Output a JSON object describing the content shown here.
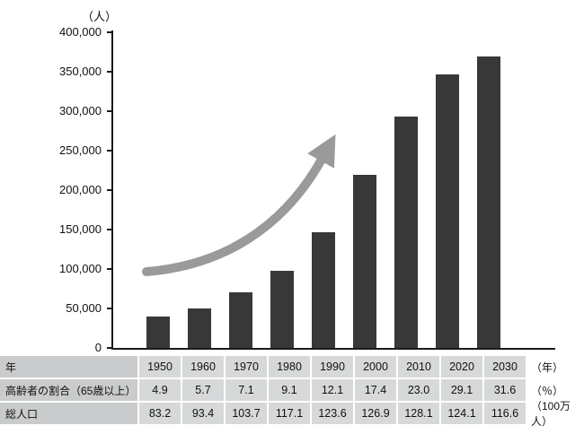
{
  "chart_data": {
    "type": "bar",
    "title": "",
    "unit_label": "（人）",
    "categories": [
      "1950",
      "1960",
      "1970",
      "1980",
      "1990",
      "2000",
      "2010",
      "2020",
      "2030"
    ],
    "values": [
      40000,
      50000,
      70000,
      98000,
      147000,
      219000,
      293000,
      347000,
      369000
    ],
    "ylim": [
      0,
      400000
    ],
    "ytick_step": 50000,
    "yticks": [
      "0",
      "50,000",
      "100,000",
      "150,000",
      "200,000",
      "250,000",
      "300,000",
      "350,000",
      "400,000"
    ],
    "bar_color": "#383838",
    "axis_color": "#1a1a1a",
    "arrow_color": "#9a9a9a",
    "legend": [],
    "grid": false,
    "annotations": [
      "upward-trend-arrow"
    ]
  },
  "table": {
    "rows": [
      {
        "label": "年",
        "values": [
          "1950",
          "1960",
          "1970",
          "1980",
          "1990",
          "2000",
          "2010",
          "2020",
          "2030"
        ],
        "unit": "（年）"
      },
      {
        "label": "高齢者の割合（65歳以上）",
        "values": [
          "4.9",
          "5.7",
          "7.1",
          "9.1",
          "12.1",
          "17.4",
          "23.0",
          "29.1",
          "31.6"
        ],
        "unit": "（％）"
      },
      {
        "label": "総人口",
        "values": [
          "83.2",
          "93.4",
          "103.7",
          "117.1",
          "123.6",
          "126.9",
          "128.1",
          "124.1",
          "116.6"
        ],
        "unit": "（100万人）"
      }
    ]
  }
}
